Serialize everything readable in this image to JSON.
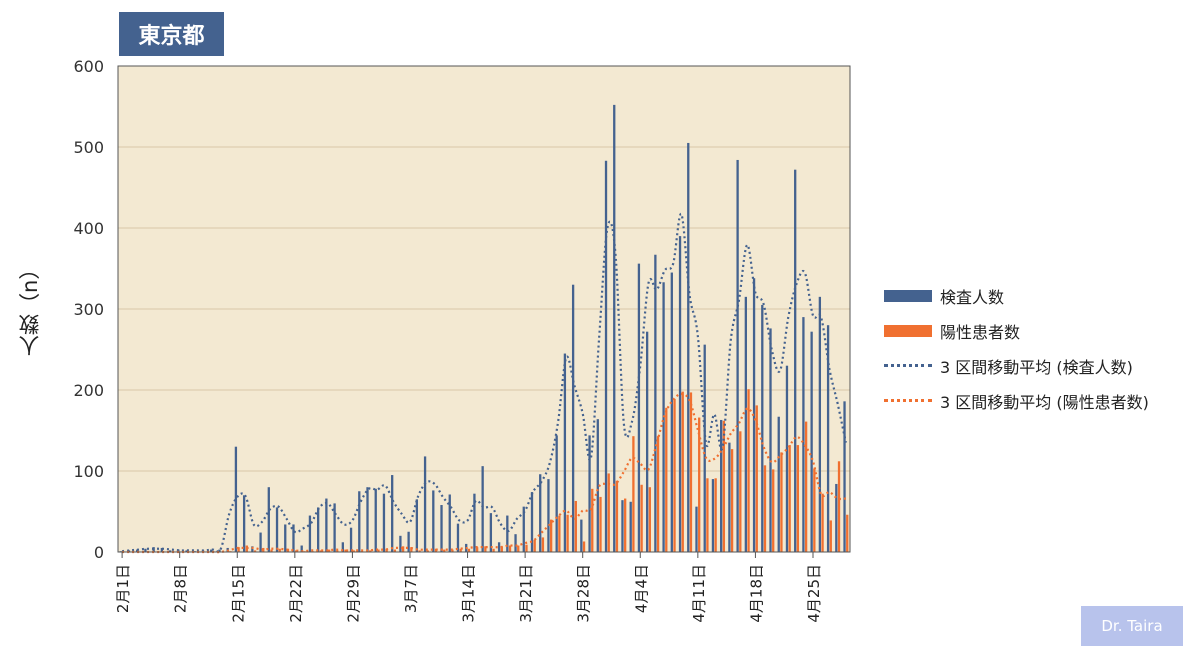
{
  "header": {
    "title": "東京都"
  },
  "credit": "Dr. Taira",
  "colors": {
    "tests": "#44628f",
    "positives": "#f07030",
    "plot_bg": "#f3e9d2",
    "grid": "#d8c8a8"
  },
  "chart_data": {
    "type": "bar",
    "ylabel": "人数（n）",
    "ylim": [
      0,
      600
    ],
    "yticks": [
      0,
      100,
      200,
      300,
      400,
      500,
      600
    ],
    "grid": true,
    "legend_position": "right",
    "x_dates": [
      "2/1",
      "2/2",
      "2/3",
      "2/4",
      "2/5",
      "2/6",
      "2/7",
      "2/8",
      "2/9",
      "2/10",
      "2/11",
      "2/12",
      "2/13",
      "2/14",
      "2/15",
      "2/16",
      "2/17",
      "2/18",
      "2/19",
      "2/20",
      "2/21",
      "2/22",
      "2/23",
      "2/24",
      "2/25",
      "2/26",
      "2/27",
      "2/28",
      "2/29",
      "3/1",
      "3/2",
      "3/3",
      "3/4",
      "3/5",
      "3/6",
      "3/7",
      "3/8",
      "3/9",
      "3/10",
      "3/11",
      "3/12",
      "3/13",
      "3/14",
      "3/15",
      "3/16",
      "3/17",
      "3/18",
      "3/19",
      "3/20",
      "3/21",
      "3/22",
      "3/23",
      "3/24",
      "3/25",
      "3/26",
      "3/27",
      "3/28",
      "3/29",
      "3/30",
      "3/31",
      "4/1",
      "4/2",
      "4/3",
      "4/4",
      "4/5",
      "4/6",
      "4/7",
      "4/8",
      "4/9",
      "4/10",
      "4/11",
      "4/12",
      "4/13",
      "4/14",
      "4/15",
      "4/16",
      "4/17",
      "4/18",
      "4/19",
      "4/20",
      "4/21",
      "4/22",
      "4/23",
      "4/24",
      "4/25",
      "4/26",
      "4/27",
      "4/28",
      "4/29"
    ],
    "tick_labels": [
      "2月1日",
      "2月8日",
      "2月15日",
      "2月22日",
      "2月29日",
      "3月7日",
      "3月14日",
      "3月21日",
      "3月28日",
      "4月4日",
      "4月11日",
      "4月18日",
      "4月25日"
    ],
    "tick_indices": [
      0,
      7,
      14,
      21,
      28,
      35,
      42,
      49,
      56,
      63,
      70,
      77,
      84
    ],
    "series": [
      {
        "name": "検査人数",
        "kind": "bar",
        "values": [
          1,
          2,
          3,
          4,
          6,
          5,
          2,
          3,
          2,
          1,
          2,
          3,
          3,
          5,
          130,
          70,
          7,
          24,
          80,
          55,
          34,
          34,
          8,
          45,
          55,
          66,
          60,
          12,
          30,
          75,
          80,
          78,
          72,
          95,
          20,
          25,
          65,
          118,
          76,
          58,
          71,
          35,
          10,
          72,
          106,
          48,
          12,
          45,
          22,
          56,
          74,
          96,
          90,
          144,
          245,
          330,
          40,
          144,
          164,
          483,
          552,
          64,
          62,
          356,
          272,
          367,
          333,
          345,
          390,
          505,
          56,
          256,
          90,
          163,
          135,
          484,
          315,
          338,
          305,
          276,
          167,
          230,
          472,
          290,
          272,
          315,
          280,
          84,
          186
        ],
        "moving_average": [
          1,
          2,
          3,
          4,
          4,
          4,
          3,
          2,
          2,
          2,
          2,
          3,
          4,
          46,
          68,
          69,
          34,
          37,
          53,
          56,
          41,
          25,
          29,
          36,
          55,
          60,
          46,
          34,
          39,
          62,
          78,
          77,
          82,
          62,
          47,
          37,
          69,
          86,
          84,
          68,
          55,
          39,
          39,
          63,
          55,
          55,
          35,
          26,
          41,
          51,
          75,
          87,
          110,
          160,
          240,
          205,
          171,
          116,
          264,
          400,
          366,
          159,
          161,
          230,
          332,
          324,
          348,
          356,
          417,
          317,
          267,
          134,
          170,
          129,
          261,
          311,
          379,
          320,
          306,
          249,
          224,
          290,
          331,
          345,
          292,
          289,
          226,
          183,
          135
        ]
      },
      {
        "name": "陽性患者数",
        "kind": "bar",
        "values": [
          0,
          0,
          0,
          0,
          0,
          0,
          0,
          0,
          0,
          0,
          0,
          0,
          0,
          1,
          6,
          8,
          2,
          5,
          3,
          4,
          4,
          2,
          1,
          1,
          2,
          3,
          2,
          3,
          2,
          1,
          2,
          3,
          4,
          3,
          7,
          6,
          2,
          2,
          4,
          3,
          3,
          4,
          4,
          6,
          7,
          4,
          7,
          8,
          8,
          9,
          15,
          18,
          40,
          45,
          46,
          63,
          13,
          78,
          68,
          97,
          88,
          66,
          143,
          83,
          80,
          143,
          178,
          189,
          198,
          197,
          166,
          91,
          91,
          162,
          127,
          149,
          201,
          181,
          107,
          102,
          123,
          132,
          132,
          161,
          103,
          72,
          39,
          112,
          46
        ],
        "moving_average": [
          0,
          0,
          0,
          0,
          0,
          0,
          0,
          0,
          0,
          0,
          0,
          0,
          0,
          2,
          5,
          5,
          5,
          3,
          4,
          4,
          3,
          2,
          1,
          2,
          2,
          2,
          3,
          2,
          2,
          2,
          2,
          3,
          3,
          5,
          5,
          5,
          3,
          3,
          3,
          3,
          3,
          4,
          5,
          6,
          6,
          6,
          6,
          8,
          8,
          11,
          14,
          24,
          34,
          44,
          51,
          41,
          51,
          53,
          81,
          84,
          84,
          99,
          116,
          109,
          102,
          134,
          170,
          188,
          195,
          187,
          151,
          116,
          115,
          127,
          146,
          159,
          177,
          163,
          130,
          111,
          119,
          129,
          142,
          132,
          112,
          71,
          74,
          66,
          66
        ]
      }
    ],
    "legend": [
      "検査人数",
      "陽性患者数",
      "3 区間移動平均 (検査人数)",
      "3 区間移動平均 (陽性患者数)"
    ]
  }
}
